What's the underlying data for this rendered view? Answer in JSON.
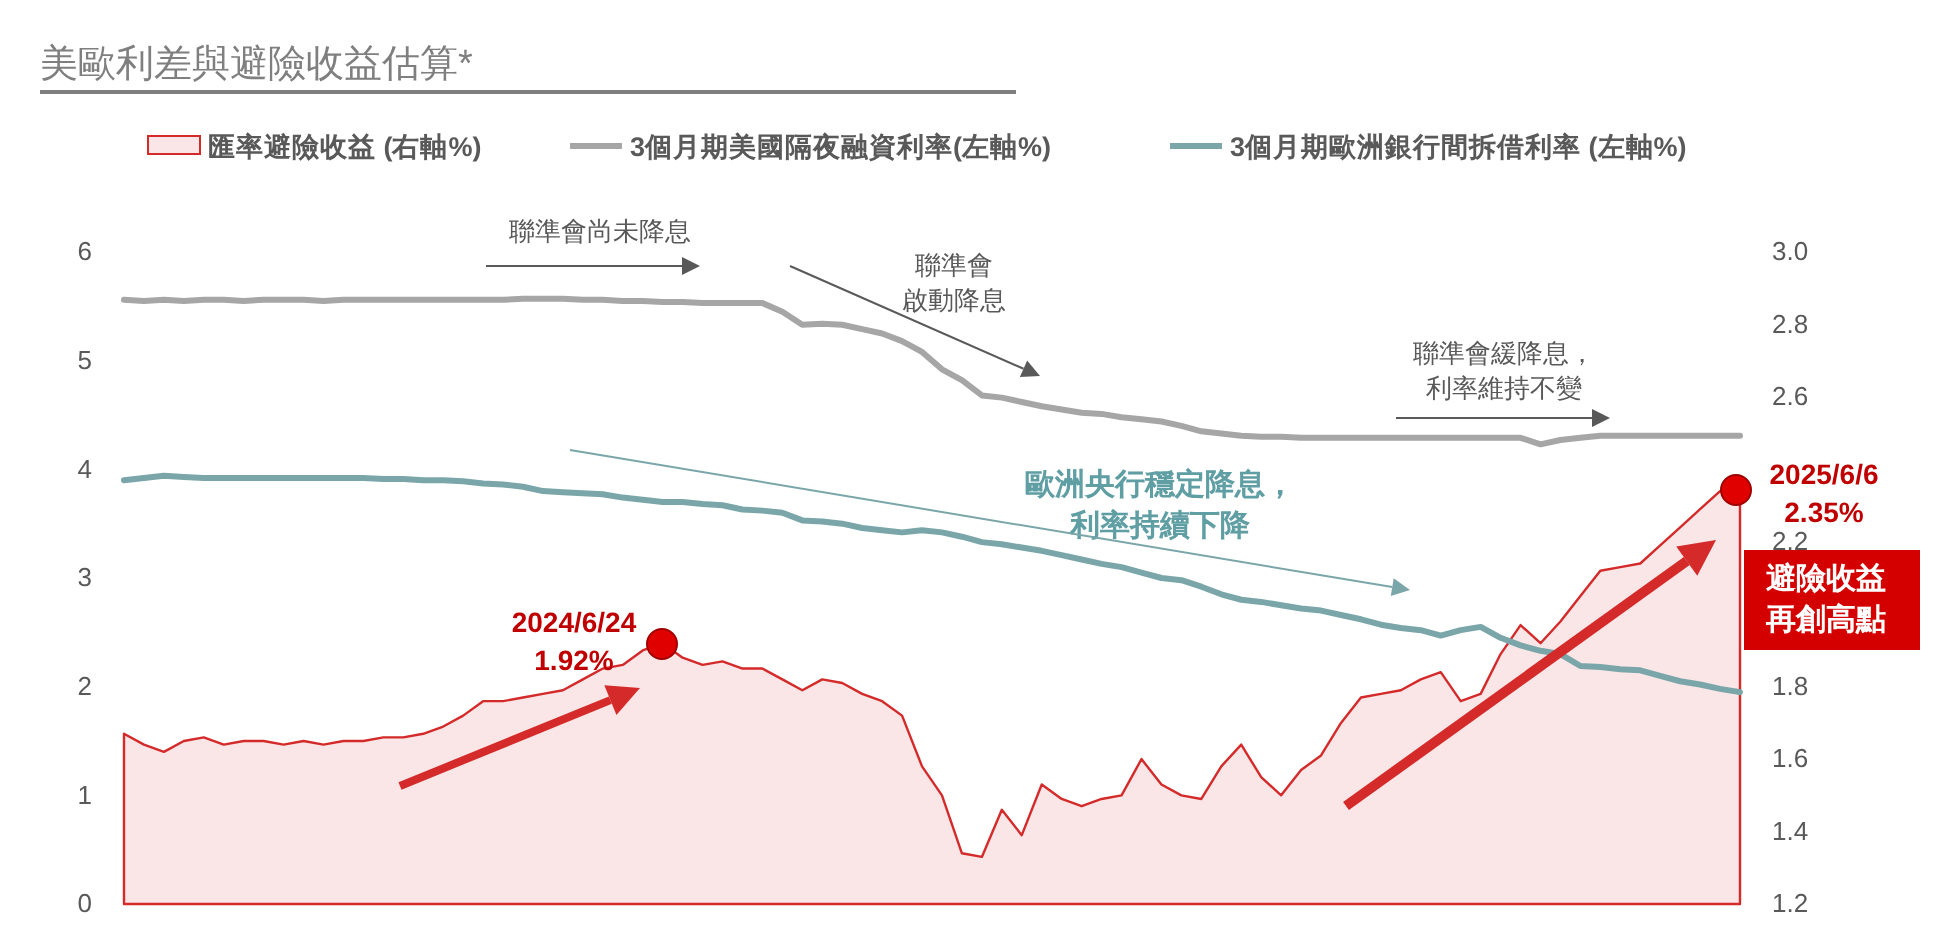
{
  "chart_data": {
    "type": "line",
    "title": "美歐利差與避險收益估算*",
    "categories": [
      null,
      null,
      null,
      null,
      null,
      null,
      null,
      null,
      null,
      null,
      null,
      null,
      null,
      null,
      null,
      null,
      null,
      null,
      null,
      null,
      null,
      null,
      null,
      null,
      null,
      null,
      null,
      null,
      null,
      null,
      null,
      null,
      null,
      null,
      null,
      null,
      null,
      null,
      null,
      null,
      null,
      null,
      null,
      null,
      null,
      null,
      null,
      null,
      null,
      null,
      null,
      null,
      null,
      null,
      null,
      null,
      null,
      null,
      null,
      null,
      null,
      null,
      null,
      null,
      null,
      null,
      null,
      null,
      null,
      null,
      null,
      null,
      null,
      null,
      null,
      null,
      null,
      null,
      null,
      null,
      null,
      null
    ],
    "series": [
      {
        "name": "匯率避險收益 (右軸%)",
        "type": "area",
        "axis": "y2",
        "color": "#d42a2a",
        "values": [
          1.67,
          1.64,
          1.62,
          1.65,
          1.66,
          1.64,
          1.65,
          1.65,
          1.64,
          1.65,
          1.64,
          1.65,
          1.65,
          1.66,
          1.66,
          1.67,
          1.69,
          1.72,
          1.76,
          1.76,
          1.77,
          1.78,
          1.79,
          1.82,
          1.85,
          1.86,
          1.9,
          1.92,
          1.88,
          1.86,
          1.87,
          1.85,
          1.85,
          1.82,
          1.79,
          1.82,
          1.81,
          1.78,
          1.76,
          1.72,
          1.58,
          1.5,
          1.34,
          1.33,
          1.46,
          1.39,
          1.53,
          1.49,
          1.47,
          1.49,
          1.5,
          1.6,
          1.53,
          1.5,
          1.49,
          1.58,
          1.64,
          1.55,
          1.5,
          1.57,
          1.61,
          1.7,
          1.77,
          1.78,
          1.79,
          1.82,
          1.84,
          1.76,
          1.78,
          1.89,
          1.97,
          1.92,
          1.98,
          2.05,
          2.12,
          2.13,
          2.14,
          2.19,
          2.24,
          2.29,
          2.34,
          2.35
        ]
      },
      {
        "name": "3個月期美國隔夜融資利率(左軸%)",
        "color": "#a6a6a6",
        "values": [
          5.56,
          5.55,
          5.56,
          5.55,
          5.56,
          5.56,
          5.55,
          5.56,
          5.56,
          5.56,
          5.55,
          5.56,
          5.56,
          5.56,
          5.56,
          5.56,
          5.56,
          5.56,
          5.56,
          5.56,
          5.57,
          5.57,
          5.57,
          5.56,
          5.56,
          5.55,
          5.55,
          5.54,
          5.54,
          5.53,
          5.53,
          5.53,
          5.53,
          5.45,
          5.33,
          5.34,
          5.33,
          5.29,
          5.25,
          5.18,
          5.08,
          4.92,
          4.82,
          4.68,
          4.66,
          4.62,
          4.58,
          4.55,
          4.52,
          4.51,
          4.48,
          4.46,
          4.44,
          4.4,
          4.35,
          4.33,
          4.31,
          4.3,
          4.3,
          4.29,
          4.29,
          4.29,
          4.29,
          4.29,
          4.29,
          4.29,
          4.29,
          4.29,
          4.29,
          4.29,
          4.29,
          4.23,
          4.27,
          4.29,
          4.31,
          4.31,
          4.31,
          4.31,
          4.31,
          4.31,
          4.31,
          4.31
        ]
      },
      {
        "name": "3個月期歐洲銀行間拆借利率 (左軸%)",
        "color": "#7aa6aa",
        "values": [
          3.9,
          3.92,
          3.94,
          3.93,
          3.92,
          3.92,
          3.92,
          3.92,
          3.92,
          3.92,
          3.92,
          3.92,
          3.92,
          3.91,
          3.91,
          3.9,
          3.9,
          3.89,
          3.87,
          3.86,
          3.84,
          3.8,
          3.79,
          3.78,
          3.77,
          3.74,
          3.72,
          3.7,
          3.7,
          3.68,
          3.67,
          3.63,
          3.62,
          3.6,
          3.53,
          3.52,
          3.5,
          3.46,
          3.44,
          3.42,
          3.44,
          3.42,
          3.38,
          3.33,
          3.31,
          3.28,
          3.25,
          3.21,
          3.17,
          3.13,
          3.1,
          3.05,
          3.0,
          2.98,
          2.92,
          2.85,
          2.8,
          2.78,
          2.75,
          2.72,
          2.7,
          2.66,
          2.62,
          2.57,
          2.54,
          2.52,
          2.47,
          2.52,
          2.55,
          2.45,
          2.38,
          2.33,
          2.3,
          2.19,
          2.18,
          2.16,
          2.15,
          2.1,
          2.05,
          2.02,
          1.98,
          1.95
        ]
      }
    ],
    "ylim": [
      0,
      6
    ],
    "yticks": [
      0,
      1,
      2,
      3,
      4,
      5,
      6
    ],
    "y2lim": [
      1.2,
      3.0
    ],
    "y2ticks": [
      {
        "value": 1.2,
        "label": "1.2"
      },
      {
        "value": 1.4,
        "label": "1.4"
      },
      {
        "value": 1.6,
        "label": "1.6"
      },
      {
        "value": 1.8,
        "label": "1.8"
      },
      {
        "value": 2.2,
        "label": "2.2"
      },
      {
        "value": 2.6,
        "label": "2.6"
      },
      {
        "value": 2.8,
        "label": "2.8"
      },
      {
        "value": 3.0,
        "label": "3.0"
      }
    ],
    "grid": false,
    "legend": "top",
    "annotations": [
      "聯準會尚未降息",
      "聯準會啟動降息",
      "聯準會緩降息，利率維持不變",
      "歐洲央行穩定降息，利率持續下降",
      "2024/6/24\n1.92%",
      "2025/6/6\n2.35%",
      "避險收益再創高點"
    ]
  }
}
